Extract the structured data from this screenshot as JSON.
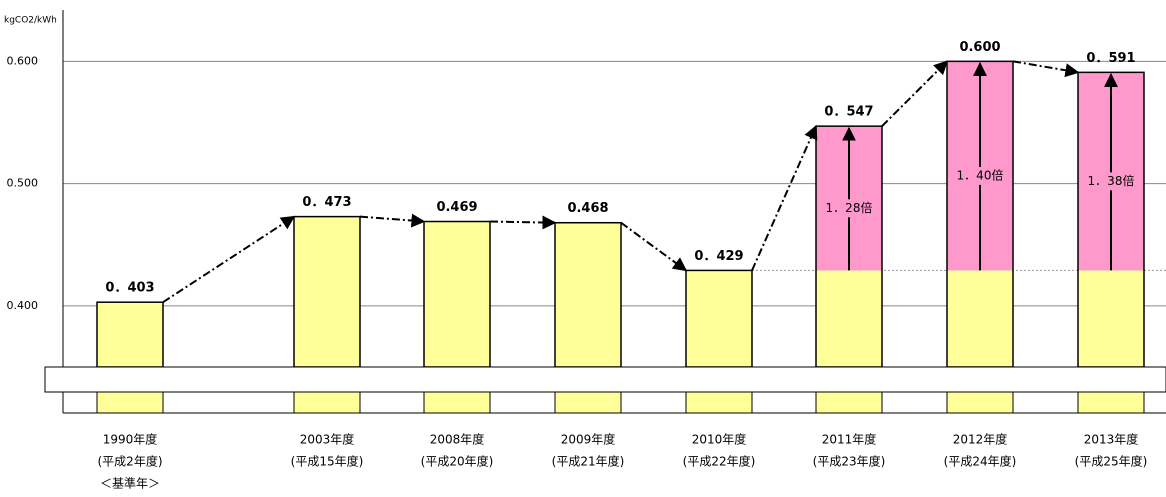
{
  "chart_data": {
    "type": "bar",
    "y_label": "kgCO2/kWh",
    "categories": [
      "1990年度",
      "2003年度",
      "2008年度",
      "2009年度",
      "2010年度",
      "2011年度",
      "2012年度",
      "2013年度"
    ],
    "sublabels": [
      "(平成2年度)",
      "(平成15年度)",
      "(平成20年度)",
      "(平成21年度)",
      "(平成22年度)",
      "(平成23年度)",
      "(平成24年度)",
      "(平成25年度)"
    ],
    "note": "＜基準年＞",
    "values": [
      0.403,
      0.473,
      0.469,
      0.468,
      0.429,
      0.547,
      0.6,
      0.591
    ],
    "value_labels": [
      "0．403",
      "0．473",
      "0.469",
      "0.468",
      "0．429",
      "0．547",
      "0.600",
      "0．591"
    ],
    "ratios": [
      null,
      null,
      null,
      null,
      null,
      {
        "value": 1.28,
        "label": "1．28倍"
      },
      {
        "value": 1.4,
        "label": "1．40倍"
      },
      {
        "value": 1.38,
        "label": "1．38倍"
      }
    ],
    "color": "#ffff99",
    "increase_color": "#ff99cc",
    "ylim": [
      0.35,
      0.642
    ],
    "yticks": [
      {
        "value": 0.4,
        "label": "0.400"
      },
      {
        "value": 0.5,
        "label": "0.500"
      },
      {
        "value": 0.6,
        "label": "0.600"
      }
    ],
    "grid": true
  }
}
